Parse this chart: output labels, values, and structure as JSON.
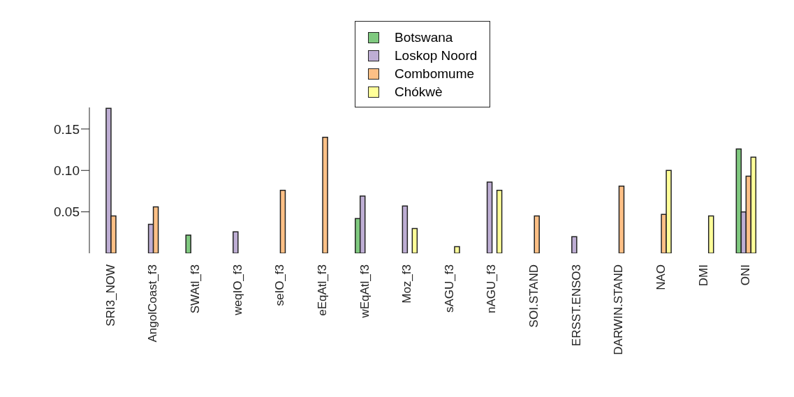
{
  "chart_data": {
    "type": "bar",
    "categories": [
      "SRI3_NOW",
      "AngolCoast_f3",
      "SWAtl_f3",
      "weqIO_f3",
      "seIO_f3",
      "eEqAtl_f3",
      "wEqAtl_f3",
      "Moz_f3",
      "sAGU_f3",
      "nAGU_f3",
      "SOI.STAND",
      "ERSST.ENSO3",
      "DARWIN.STAND",
      "NAO",
      "DMI",
      "ONI"
    ],
    "series": [
      {
        "name": "Botswana",
        "color": "#7fc97f",
        "values": [
          null,
          null,
          0.022,
          null,
          null,
          null,
          0.042,
          null,
          null,
          null,
          null,
          null,
          null,
          null,
          null,
          0.126
        ]
      },
      {
        "name": "Loskop Noord",
        "color": "#beaed4",
        "values": [
          0.175,
          0.035,
          null,
          0.026,
          null,
          null,
          0.069,
          0.057,
          null,
          0.086,
          null,
          0.02,
          null,
          null,
          null,
          0.05
        ]
      },
      {
        "name": "Combomume",
        "color": "#fdc086",
        "values": [
          0.045,
          0.056,
          null,
          null,
          0.076,
          0.14,
          null,
          null,
          null,
          null,
          0.045,
          null,
          0.081,
          0.047,
          null,
          0.093
        ]
      },
      {
        "name": "Chókwè",
        "color": "#ffff99",
        "values": [
          null,
          null,
          null,
          null,
          null,
          null,
          null,
          0.03,
          0.008,
          0.076,
          null,
          null,
          null,
          0.1,
          0.045,
          0.116
        ]
      }
    ],
    "ylim": [
      0,
      0.176
    ],
    "yticks": [
      {
        "value": 0.05,
        "label": "0.05"
      },
      {
        "value": 0.1,
        "label": "0.10"
      },
      {
        "value": 0.15,
        "label": "0.15"
      }
    ],
    "grid": false,
    "legend": "top"
  }
}
